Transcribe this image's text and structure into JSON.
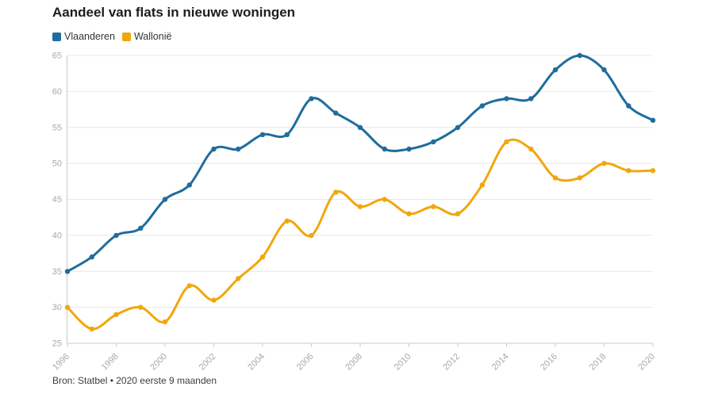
{
  "source_note": "Bron: Statbel • 2020 eerste 9 maanden",
  "chart_data": {
    "type": "line",
    "title": "Aandeel van flats in nieuwe woningen",
    "x": [
      1996,
      1997,
      1998,
      1999,
      2000,
      2001,
      2002,
      2003,
      2004,
      2005,
      2006,
      2007,
      2008,
      2009,
      2010,
      2011,
      2012,
      2013,
      2014,
      2015,
      2016,
      2017,
      2018,
      2019,
      2020
    ],
    "series": [
      {
        "name": "Vlaanderen",
        "color": "#1f6d9c",
        "values": [
          35,
          37,
          40,
          41,
          45,
          47,
          52,
          52,
          54,
          54,
          59,
          57,
          55,
          52,
          52,
          53,
          55,
          58,
          59,
          59,
          63,
          65,
          63,
          58,
          56
        ]
      },
      {
        "name": "Wallonië",
        "color": "#f1a70c",
        "values": [
          30,
          27,
          29,
          30,
          28,
          33,
          31,
          34,
          37,
          42,
          40,
          46,
          44,
          45,
          43,
          44,
          43,
          47,
          53,
          52,
          48,
          48,
          50,
          49,
          49
        ]
      }
    ],
    "xlabel": "",
    "ylabel": "",
    "ylim": [
      25,
      65
    ],
    "ytick_step": 5,
    "xtick_step": 2,
    "grid": true,
    "legend_position": "top-left",
    "grid_color": "#e8e8e8",
    "axis_line_color": "#c9c9c9",
    "axis_label_color": "#a8a8a8",
    "marker": "circle",
    "line_width": 3
  }
}
